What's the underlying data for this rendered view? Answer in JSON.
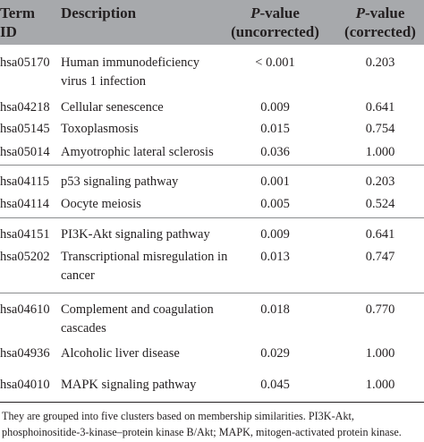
{
  "table": {
    "headers": {
      "term_line1": "Term",
      "term_line2": "ID",
      "description": "Description",
      "uncorrected_italic": "P",
      "uncorrected_rest": "-value",
      "uncorrected_line2": "(uncorrected)",
      "corrected_italic": "P",
      "corrected_rest": "-value",
      "corrected_line2": "(corrected)"
    },
    "rows": [
      {
        "id": "hsa05170",
        "desc": [
          "Human immunodeficiency",
          "virus 1 infection"
        ],
        "uncorrected": "< 0.001",
        "corrected": "0.203"
      },
      {
        "id": "hsa04218",
        "desc": [
          "Cellular senescence"
        ],
        "uncorrected": "0.009",
        "corrected": "0.641"
      },
      {
        "id": "hsa05145",
        "desc": [
          "Toxoplasmosis"
        ],
        "uncorrected": "0.015",
        "corrected": "0.754"
      },
      {
        "id": "hsa05014",
        "desc": [
          "Amyotrophic lateral sclerosis"
        ],
        "uncorrected": "0.036",
        "corrected": "1.000"
      },
      {
        "id": "hsa04115",
        "desc": [
          "p53 signaling pathway"
        ],
        "uncorrected": "0.001",
        "corrected": "0.203"
      },
      {
        "id": "hsa04114",
        "desc": [
          "Oocyte meiosis"
        ],
        "uncorrected": "0.005",
        "corrected": "0.524"
      },
      {
        "id": "hsa04151",
        "desc": [
          "PI3K-Akt signaling pathway"
        ],
        "uncorrected": "0.009",
        "corrected": "0.641"
      },
      {
        "id": "hsa05202",
        "desc": [
          "Transcriptional misregulation in",
          "cancer"
        ],
        "uncorrected": "0.013",
        "corrected": "0.747"
      },
      {
        "id": "hsa04610",
        "desc": [
          "Complement and coagulation",
          "cascades"
        ],
        "uncorrected": "0.018",
        "corrected": "0.770"
      },
      {
        "id": "hsa04936",
        "desc": [
          "Alcoholic liver disease"
        ],
        "uncorrected": "0.029",
        "corrected": "1.000"
      },
      {
        "id": "hsa04010",
        "desc": [
          "MAPK signaling pathway"
        ],
        "uncorrected": "0.045",
        "corrected": "1.000"
      }
    ]
  },
  "footnote": [
    "They are grouped into five clusters based on membership similarities. PI3K-Akt,",
    "phosphoinositide-3-kinase–protein kinase B/Akt; MAPK, mitogen-activated protein kinase."
  ]
}
